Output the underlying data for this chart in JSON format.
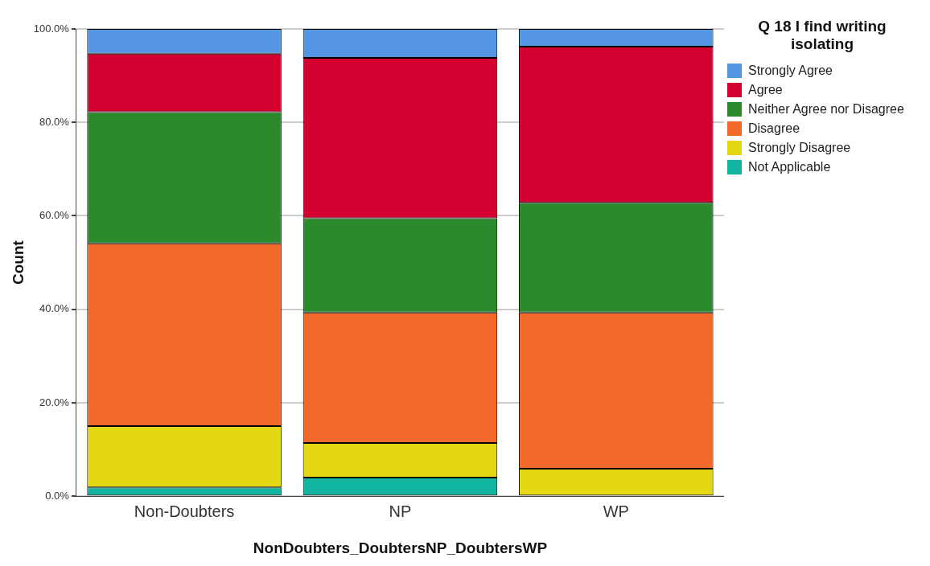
{
  "chart_data": {
    "type": "bar",
    "stacked": true,
    "xlabel": "NonDoubters_DoubtersNP_DoubtersWP",
    "ylabel": "Count",
    "legend_title": "Q 18 I find writing isolating",
    "legend": "right",
    "grid": "y",
    "categories": [
      "Non-Doubters",
      "NP",
      "WP"
    ],
    "ylim": [
      0,
      100
    ],
    "yticks": [
      {
        "value": 0,
        "label": "0.0%"
      },
      {
        "value": 20,
        "label": "20.0%"
      },
      {
        "value": 40,
        "label": "40.0%"
      },
      {
        "value": 60,
        "label": "60.0%"
      },
      {
        "value": 80,
        "label": "80.0%"
      },
      {
        "value": 100,
        "label": "100.0%"
      }
    ],
    "series": [
      {
        "name": "Not Applicable",
        "color": "#12b5a0",
        "values": [
          1.9,
          4.0,
          0
        ]
      },
      {
        "name": "Strongly Disagree",
        "color": "#e3d811",
        "values": [
          13.1,
          7.4,
          5.9
        ]
      },
      {
        "name": "Disagree",
        "color": "#f2692a",
        "values": [
          39.1,
          27.9,
          33.4
        ]
      },
      {
        "name": "Neither Agree nor Disagree",
        "color": "#2a8a2c",
        "values": [
          28.1,
          20.2,
          23.5
        ]
      },
      {
        "name": "Agree",
        "color": "#d4002f",
        "values": [
          12.5,
          34.3,
          33.4
        ]
      },
      {
        "name": "Strongly Agree",
        "color": "#5596e2",
        "values": [
          5.3,
          6.2,
          3.8
        ]
      }
    ]
  }
}
